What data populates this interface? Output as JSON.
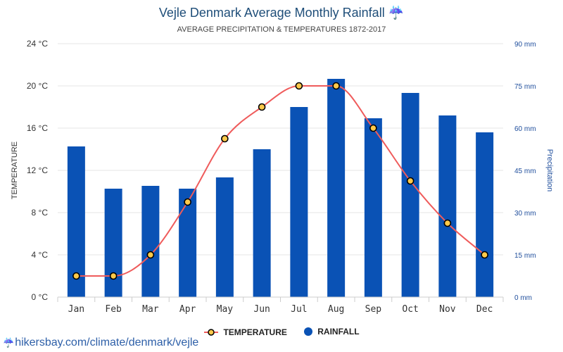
{
  "header": {
    "title": "Vejle Denmark Average Monthly Rainfall",
    "title_icon": "☔",
    "subtitle": "AVERAGE PRECIPITATION & TEMPERATURES 1872-2017"
  },
  "footer": {
    "source": "hikersbay.com/climate/denmark/vejle"
  },
  "colors": {
    "bar": "#0a52b5",
    "line": "#ef5b5b",
    "marker_fill": "#ffc94a",
    "grid": "#e6e6e6",
    "right_axis": "#1f4e9c"
  },
  "chart_data": {
    "type": "bar",
    "categories": [
      "Jan",
      "Feb",
      "Mar",
      "Apr",
      "May",
      "Jun",
      "Jul",
      "Aug",
      "Sep",
      "Oct",
      "Nov",
      "Dec"
    ],
    "series": [
      {
        "name": "RAINFALL",
        "type": "bar",
        "axis": "right",
        "values": [
          53.5,
          38.5,
          39.5,
          38.5,
          42.5,
          52.5,
          67.5,
          77.5,
          63.5,
          72.5,
          64.5,
          58.5
        ]
      },
      {
        "name": "TEMPERATURE",
        "type": "line",
        "axis": "left",
        "values": [
          2,
          2,
          4,
          9,
          15,
          18,
          20,
          20,
          16,
          11,
          7,
          4
        ]
      }
    ],
    "ylabel": "TEMPERATURE",
    "y2label": "Precipitation",
    "ylim": [
      0,
      24
    ],
    "y2lim": [
      0,
      90
    ],
    "yticks": [
      "0 °C",
      "4 °C",
      "8 °C",
      "12 °C",
      "16 °C",
      "20 °C",
      "24 °C"
    ],
    "y2ticks": [
      "0 mm",
      "15 mm",
      "30 mm",
      "45 mm",
      "60 mm",
      "75 mm",
      "90 mm"
    ],
    "legend": "bottom",
    "grid": true
  }
}
